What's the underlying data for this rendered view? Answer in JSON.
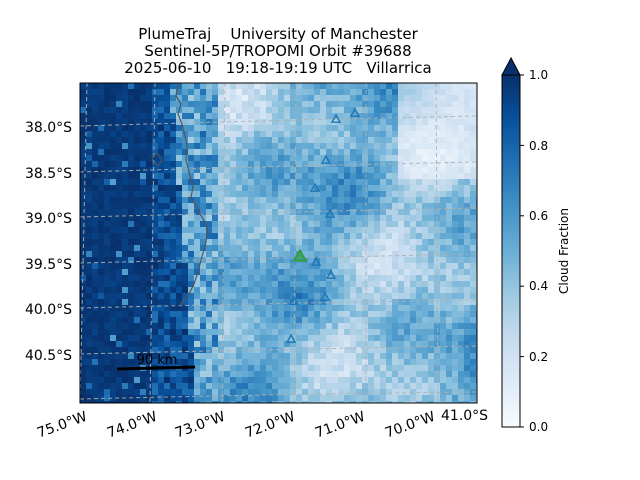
{
  "title": {
    "line1": "PlumeTraj    University of Manchester",
    "line2": "Sentinel-5P/TROPOMI Orbit #39688",
    "line3": "2025-06-10   19:18-19:19 UTC   Villarrica"
  },
  "map": {
    "lat_labels": [
      "38.0°S",
      "38.5°S",
      "39.0°S",
      "39.5°S",
      "40.0°S",
      "40.5°S"
    ],
    "lon_labels": [
      "75.0°W",
      "74.0°W",
      "73.0°W",
      "72.0°W",
      "71.0°W",
      "70.0°W"
    ],
    "corner_label": "41.0°S",
    "gridlines": true,
    "scale_bar": {
      "label": "90 km"
    },
    "volcano_marker": {
      "name": "Villarrica",
      "symbol": "triangle",
      "color": "#2ca02c"
    },
    "other_volcanoes_color": "#1f77b4",
    "coastline_color": "#555555"
  },
  "colorbar": {
    "label": "Cloud Fraction",
    "ticks": [
      "0.0",
      "0.2",
      "0.4",
      "0.6",
      "0.8",
      "1.0"
    ],
    "range": [
      0.0,
      1.0
    ],
    "extend": "max",
    "colormap": "Blues",
    "low_color": "#f7fbff",
    "high_color": "#08306b"
  }
}
